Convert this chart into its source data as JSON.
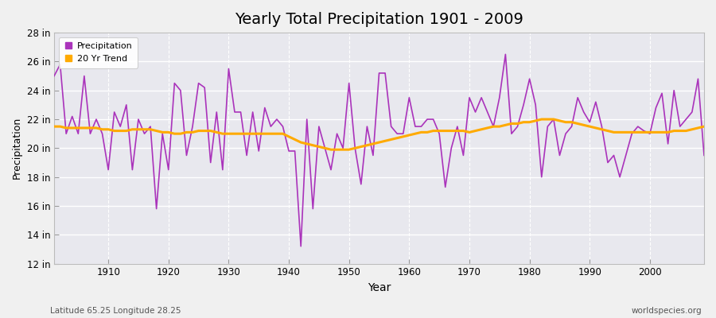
{
  "title": "Yearly Total Precipitation 1901 - 2009",
  "xlabel": "Year",
  "ylabel": "Precipitation",
  "footnote_left": "Latitude 65.25 Longitude 28.25",
  "footnote_right": "worldspecies.org",
  "legend_entries": [
    "Precipitation",
    "20 Yr Trend"
  ],
  "precip_color": "#aa33bb",
  "trend_color": "#ffaa00",
  "background_color": "#f0f0f0",
  "plot_bg_color": "#e8e8ee",
  "grid_color": "#ffffff",
  "ylim": [
    12,
    28
  ],
  "ytick_labels": [
    "12 in",
    "14 in",
    "16 in",
    "18 in",
    "20 in",
    "22 in",
    "24 in",
    "26 in",
    "28 in"
  ],
  "ytick_values": [
    12,
    14,
    16,
    18,
    20,
    22,
    24,
    26,
    28
  ],
  "xticks": [
    1910,
    1920,
    1930,
    1940,
    1950,
    1960,
    1970,
    1980,
    1990,
    2000
  ],
  "years": [
    1901,
    1902,
    1903,
    1904,
    1905,
    1906,
    1907,
    1908,
    1909,
    1910,
    1911,
    1912,
    1913,
    1914,
    1915,
    1916,
    1917,
    1918,
    1919,
    1920,
    1921,
    1922,
    1923,
    1924,
    1925,
    1926,
    1927,
    1928,
    1929,
    1930,
    1931,
    1932,
    1933,
    1934,
    1935,
    1936,
    1937,
    1938,
    1939,
    1940,
    1941,
    1942,
    1943,
    1944,
    1945,
    1946,
    1947,
    1948,
    1949,
    1950,
    1951,
    1952,
    1953,
    1954,
    1955,
    1956,
    1957,
    1958,
    1959,
    1960,
    1961,
    1962,
    1963,
    1964,
    1965,
    1966,
    1967,
    1968,
    1969,
    1970,
    1971,
    1972,
    1973,
    1974,
    1975,
    1976,
    1977,
    1978,
    1979,
    1980,
    1981,
    1982,
    1983,
    1984,
    1985,
    1986,
    1987,
    1988,
    1989,
    1990,
    1991,
    1992,
    1993,
    1994,
    1995,
    1996,
    1997,
    1998,
    1999,
    2000,
    2001,
    2002,
    2003,
    2004,
    2005,
    2006,
    2007,
    2008,
    2009
  ],
  "precip": [
    25.0,
    25.8,
    21.0,
    22.2,
    21.0,
    25.0,
    21.0,
    22.0,
    21.0,
    18.5,
    22.5,
    21.5,
    23.0,
    18.5,
    22.0,
    21.0,
    21.5,
    15.8,
    21.0,
    18.5,
    24.5,
    24.0,
    19.5,
    21.5,
    24.5,
    24.2,
    19.0,
    22.5,
    18.5,
    25.5,
    22.5,
    22.5,
    19.5,
    22.5,
    19.8,
    22.8,
    21.5,
    22.0,
    21.5,
    19.8,
    19.8,
    13.2,
    22.0,
    15.8,
    21.5,
    20.0,
    18.5,
    21.0,
    20.0,
    24.5,
    20.0,
    17.5,
    21.5,
    19.5,
    25.2,
    25.2,
    21.5,
    21.0,
    21.0,
    23.5,
    21.5,
    21.5,
    22.0,
    22.0,
    21.0,
    17.3,
    20.0,
    21.5,
    19.5,
    23.5,
    22.5,
    23.5,
    22.5,
    21.5,
    23.5,
    26.5,
    21.0,
    21.5,
    23.0,
    24.8,
    23.0,
    18.0,
    21.5,
    22.0,
    19.5,
    21.0,
    21.5,
    23.5,
    22.5,
    21.8,
    23.2,
    21.5,
    19.0,
    19.5,
    18.0,
    19.5,
    21.0,
    21.5,
    21.2,
    21.0,
    22.8,
    23.8,
    20.3,
    24.0,
    21.5,
    22.0,
    22.5,
    24.8,
    19.5
  ],
  "trend": [
    21.5,
    21.5,
    21.4,
    21.4,
    21.4,
    21.4,
    21.4,
    21.4,
    21.3,
    21.3,
    21.2,
    21.2,
    21.2,
    21.3,
    21.3,
    21.3,
    21.3,
    21.2,
    21.1,
    21.1,
    21.0,
    21.0,
    21.1,
    21.1,
    21.2,
    21.2,
    21.2,
    21.1,
    21.0,
    21.0,
    21.0,
    21.0,
    21.0,
    21.0,
    21.0,
    21.0,
    21.0,
    21.0,
    21.0,
    20.8,
    20.6,
    20.4,
    20.3,
    20.2,
    20.1,
    20.0,
    19.9,
    19.9,
    19.9,
    19.9,
    20.0,
    20.1,
    20.2,
    20.3,
    20.4,
    20.5,
    20.6,
    20.7,
    20.8,
    20.9,
    21.0,
    21.1,
    21.1,
    21.2,
    21.2,
    21.2,
    21.2,
    21.2,
    21.2,
    21.1,
    21.2,
    21.3,
    21.4,
    21.5,
    21.5,
    21.6,
    21.7,
    21.7,
    21.8,
    21.8,
    21.9,
    22.0,
    22.0,
    22.0,
    21.9,
    21.8,
    21.8,
    21.7,
    21.6,
    21.5,
    21.4,
    21.3,
    21.2,
    21.1,
    21.1,
    21.1,
    21.1,
    21.1,
    21.1,
    21.1,
    21.1,
    21.1,
    21.1,
    21.2,
    21.2,
    21.2,
    21.3,
    21.4,
    21.5
  ]
}
